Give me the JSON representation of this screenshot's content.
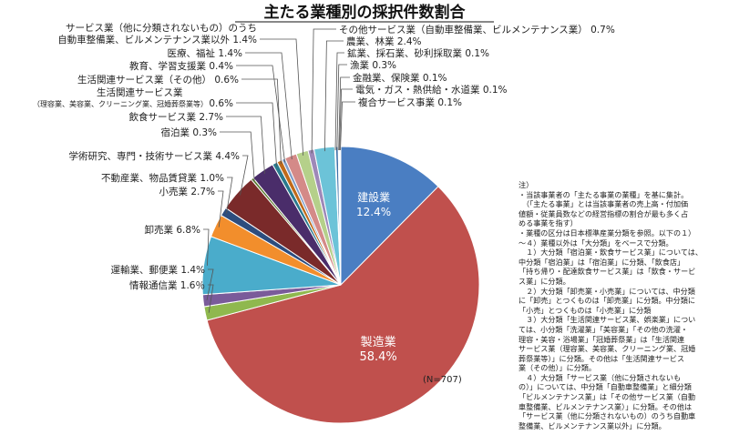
{
  "chart_data": {
    "type": "pie",
    "title": "主たる業種別の採択件数割合",
    "sample_size": "(N=707)",
    "slices": [
      {
        "label": "建設業",
        "value": 12.4,
        "display": "12.4%",
        "color": "#4a7ec2"
      },
      {
        "label": "製造業",
        "value": 58.4,
        "display": "58.4%",
        "color": "#c0504d"
      },
      {
        "label": "情報通信業",
        "value": 1.6,
        "display": "1.6％",
        "color": "#8fb84e"
      },
      {
        "label": "運輸業、郵便業",
        "value": 1.4,
        "display": "1.4%",
        "color": "#7a5b9a"
      },
      {
        "label": "卸売業",
        "value": 6.8,
        "display": "6.8%",
        "color": "#4aaccb"
      },
      {
        "label": "小売業",
        "value": 2.7,
        "display": "2.7%",
        "color": "#f28e2c"
      },
      {
        "label": "不動産業、物品賃貸業",
        "value": 1.0,
        "display": "1.0%",
        "color": "#2d4d7e"
      },
      {
        "label": "学術研究、専門・技術サービス業",
        "value": 4.4,
        "display": "4.4%",
        "color": "#7a2a2a"
      },
      {
        "label": "宿泊業",
        "value": 0.3,
        "display": "0.3%",
        "color": "#5b7a2e"
      },
      {
        "label": "飲食サービス業",
        "value": 2.7,
        "display": "2.7%",
        "color": "#4a2d6a"
      },
      {
        "label": "生活関連サービス業",
        "sublabel": "（理容業、美容業、クリーニング業、冠婚葬祭業等）",
        "value": 0.6,
        "display": "0.6%",
        "color": "#2a7a8e"
      },
      {
        "label": "生活関連サービス業（その他）",
        "value": 0.6,
        "display": "0.6%",
        "color": "#c06a1a"
      },
      {
        "label": "教育、学習支援業",
        "value": 0.4,
        "display": "0.4%",
        "color": "#7e9cc8"
      },
      {
        "label": "医療、福祉",
        "value": 1.4,
        "display": "1.4%",
        "color": "#d48a88"
      },
      {
        "label": "サービス業（他に分類されないもの）のうち自動車整備業、ビルメンテナンス業以外",
        "display_lines": [
          "サービス業（他に分類されないもの）のうち",
          "自動車整備業、ビルメンテナンス業以外"
        ],
        "value": 1.4,
        "display": "1.4%",
        "color": "#b5d08a"
      },
      {
        "label": "その他サービス業（自動車整備業、ビルメンテナンス業）",
        "value": 0.7,
        "display": "0.7%",
        "color": "#9e88b8"
      },
      {
        "label": "農業、林業",
        "value": 2.4,
        "display": "2.4%",
        "color": "#6cc3d8"
      },
      {
        "label": "鉱業、採石業、砂利採取業",
        "value": 0.1,
        "display": "0.1%",
        "color": "#f5b87a"
      },
      {
        "label": "漁業",
        "value": 0.3,
        "display": "0.3%",
        "color": "#3d6fa8"
      },
      {
        "label": "金融業、保険業",
        "value": 0.1,
        "display": "0.1%",
        "color": "#a33a3a"
      },
      {
        "label": "電気・ガス・熱供給・水道業",
        "value": 0.1,
        "display": "0.1%",
        "color": "#6f9a3a"
      },
      {
        "label": "複合サービス事業",
        "value": 0.1,
        "display": "0.1%",
        "color": "#5e4b8a"
      }
    ]
  },
  "notes": [
    "注）",
    "・当該事業者の「主たる事業の業種」を基に集計。",
    "　（「主たる事業」とは当該事業者の売上高・付加価",
    "値額・従業員数などの経営指標の割合が最も多く占",
    "める事業を指す）",
    "・業種の区分は日本標準産業分類を参照。以下の１）",
    "～４）業種以外は「大分類」をベースで分類。",
    "　１）大分類「宿泊業・飲食サービス業」については、",
    "中分類「宿泊業」は「宿泊業」に分類、「飲食店」",
    "「持ち帰り・配達飲食サービス業」は「飲食・サービ",
    "ス業」に分類。",
    "　２）大分類「卸売業・小売業」については、中分類",
    "に「卸売」とつくものは「卸売業」に分類。中分類に",
    "「小売」とつくものは「小売業」に分類",
    "　３）大分類「生活関連サービス業、娯楽業」につい",
    "ては、小分類「洗濯業」「美容業」「その他の洗濯・",
    "理容・美容・浴場業」「冠婚葬祭業」は「生活関連",
    "サービス業（理容業、美容業、クリーニング業、冠婚",
    "葬祭業等）」に分類。その他は「生活関連サービス",
    "業（その他）」に分類。",
    "　４）大分類「サービス業（他に分類されないも",
    "の）」については、中分類「自動車整備業」と細分類",
    "「ビルメンテナンス業」は「その他サービス業（自動",
    "車整備業、ビルメンテナンス業）」に分類。その他は",
    "「サービス業（他に分類されないもの）のうち自動車",
    "整備業、ビルメンテナンス業以外」に分類。"
  ]
}
